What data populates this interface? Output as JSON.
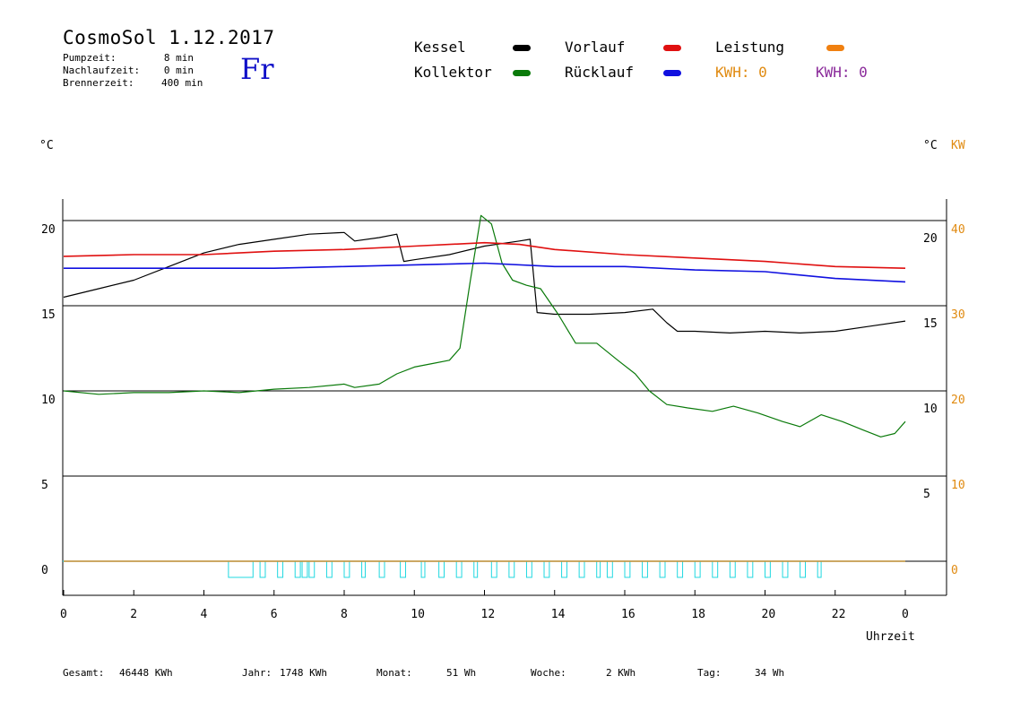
{
  "header": {
    "title": "CosmoSol 1.12.2017",
    "day": "Fr",
    "info": [
      {
        "label": "Pumpzeit:",
        "value": "8 min"
      },
      {
        "label": "Nachlaufzeit:",
        "value": "0 min"
      },
      {
        "label": "Brennerzeit:",
        "value": "400 min"
      }
    ]
  },
  "legend": {
    "kessel": {
      "label": "Kessel",
      "color": "#000000"
    },
    "kollektor": {
      "label": "Kollektor",
      "color": "#0a7a0a"
    },
    "vorlauf": {
      "label": "Vorlauf",
      "color": "#e01010"
    },
    "ruecklauf": {
      "label": "Rücklauf",
      "color": "#1010e0"
    },
    "leistung": {
      "label": "Leistung",
      "color": "#f08010"
    },
    "kwh1": {
      "label": "KWH: 0",
      "color": "#e08a10"
    },
    "kwh2": {
      "label": "KWH: 0",
      "color": "#8a2a9a"
    }
  },
  "units": {
    "left": "°C",
    "right_c": "°C",
    "right_kw": "KW"
  },
  "footer": {
    "gesamt_label": "Gesamt:",
    "gesamt_value": "46448 KWh",
    "jahr_label": "Jahr:",
    "jahr_value": "1748 KWh",
    "monat_label": "Monat:",
    "monat_value": "51 Wh",
    "woche_label": "Woche:",
    "woche_value": "2 KWh",
    "tag_label": "Tag:",
    "tag_value": "34 Wh"
  },
  "chart_data": {
    "type": "line",
    "xlabel": "Uhrzeit",
    "x_ticks": [
      "0",
      "2",
      "4",
      "6",
      "8",
      "10",
      "12",
      "14",
      "16",
      "18",
      "20",
      "22",
      "0"
    ],
    "x_range": [
      0,
      24
    ],
    "y_left_ticks": [
      "0",
      "5",
      "10",
      "15",
      "20"
    ],
    "y_left_range": [
      -1,
      22
    ],
    "y_right_c_ticks": [
      "5",
      "10",
      "15",
      "20"
    ],
    "y_right_kw_ticks": [
      "0",
      "10",
      "20",
      "30",
      "40"
    ],
    "grid": "horizontal",
    "series": [
      {
        "name": "Kessel",
        "color": "#000000",
        "points": [
          [
            0,
            15.5
          ],
          [
            1,
            16.0
          ],
          [
            2,
            16.5
          ],
          [
            3,
            17.3
          ],
          [
            4,
            18.1
          ],
          [
            5,
            18.6
          ],
          [
            6,
            18.9
          ],
          [
            7,
            19.2
          ],
          [
            8,
            19.3
          ],
          [
            8.3,
            18.8
          ],
          [
            9,
            19.0
          ],
          [
            9.5,
            19.2
          ],
          [
            9.7,
            17.6
          ],
          [
            10,
            17.7
          ],
          [
            11,
            18.0
          ],
          [
            12,
            18.5
          ],
          [
            13,
            18.8
          ],
          [
            13.3,
            18.9
          ],
          [
            13.5,
            14.6
          ],
          [
            14,
            14.5
          ],
          [
            15,
            14.5
          ],
          [
            16,
            14.6
          ],
          [
            16.8,
            14.8
          ],
          [
            17.2,
            14.0
          ],
          [
            17.5,
            13.5
          ],
          [
            18,
            13.5
          ],
          [
            19,
            13.4
          ],
          [
            20,
            13.5
          ],
          [
            21,
            13.4
          ],
          [
            22,
            13.5
          ],
          [
            23,
            13.8
          ],
          [
            24,
            14.1
          ]
        ]
      },
      {
        "name": "Kollektor",
        "color": "#0a7a0a",
        "points": [
          [
            0,
            10.0
          ],
          [
            1,
            9.8
          ],
          [
            2,
            9.9
          ],
          [
            3,
            9.9
          ],
          [
            4,
            10.0
          ],
          [
            5,
            9.9
          ],
          [
            6,
            10.1
          ],
          [
            7,
            10.2
          ],
          [
            8,
            10.4
          ],
          [
            8.3,
            10.2
          ],
          [
            9,
            10.4
          ],
          [
            9.5,
            11.0
          ],
          [
            10,
            11.4
          ],
          [
            10.5,
            11.6
          ],
          [
            11,
            11.8
          ],
          [
            11.3,
            12.5
          ],
          [
            11.6,
            16.5
          ],
          [
            11.9,
            20.3
          ],
          [
            12.2,
            19.8
          ],
          [
            12.5,
            17.5
          ],
          [
            12.8,
            16.5
          ],
          [
            13.2,
            16.2
          ],
          [
            13.6,
            16.0
          ],
          [
            14.1,
            14.5
          ],
          [
            14.6,
            12.8
          ],
          [
            15.2,
            12.8
          ],
          [
            15.8,
            11.8
          ],
          [
            16.3,
            11.0
          ],
          [
            16.7,
            10.0
          ],
          [
            17.2,
            9.2
          ],
          [
            17.8,
            9.0
          ],
          [
            18.5,
            8.8
          ],
          [
            19.1,
            9.1
          ],
          [
            19.8,
            8.7
          ],
          [
            20.5,
            8.2
          ],
          [
            21.0,
            7.9
          ],
          [
            21.6,
            8.6
          ],
          [
            22.2,
            8.2
          ],
          [
            22.8,
            7.7
          ],
          [
            23.3,
            7.3
          ],
          [
            23.7,
            7.5
          ],
          [
            24,
            8.2
          ]
        ]
      },
      {
        "name": "Vorlauf",
        "color": "#e01010",
        "points": [
          [
            0,
            17.9
          ],
          [
            2,
            18.0
          ],
          [
            4,
            18.0
          ],
          [
            6,
            18.2
          ],
          [
            8,
            18.3
          ],
          [
            10,
            18.5
          ],
          [
            12,
            18.7
          ],
          [
            13,
            18.6
          ],
          [
            14,
            18.3
          ],
          [
            16,
            18.0
          ],
          [
            18,
            17.8
          ],
          [
            20,
            17.6
          ],
          [
            22,
            17.3
          ],
          [
            24,
            17.2
          ]
        ]
      },
      {
        "name": "Rücklauf",
        "color": "#1010e0",
        "points": [
          [
            0,
            17.2
          ],
          [
            2,
            17.2
          ],
          [
            4,
            17.2
          ],
          [
            6,
            17.2
          ],
          [
            8,
            17.3
          ],
          [
            10,
            17.4
          ],
          [
            12,
            17.5
          ],
          [
            14,
            17.3
          ],
          [
            16,
            17.3
          ],
          [
            18,
            17.1
          ],
          [
            20,
            17.0
          ],
          [
            22,
            16.6
          ],
          [
            24,
            16.4
          ]
        ]
      },
      {
        "name": "Leistung",
        "color": "#f08010",
        "points": [
          [
            0,
            0.0
          ],
          [
            24,
            0.0
          ]
        ]
      }
    ],
    "pump": {
      "color": "#20d8e0",
      "on_intervals": [
        [
          4.7,
          5.4
        ],
        [
          5.6,
          5.75
        ],
        [
          6.1,
          6.25
        ],
        [
          6.6,
          6.75
        ],
        [
          6.8,
          6.95
        ],
        [
          7.0,
          7.15
        ],
        [
          7.5,
          7.65
        ],
        [
          8.0,
          8.15
        ],
        [
          8.5,
          8.6
        ],
        [
          9.0,
          9.15
        ],
        [
          9.6,
          9.75
        ],
        [
          10.2,
          10.3
        ],
        [
          10.7,
          10.85
        ],
        [
          11.2,
          11.35
        ],
        [
          11.7,
          11.8
        ],
        [
          12.2,
          12.35
        ],
        [
          12.7,
          12.85
        ],
        [
          13.2,
          13.35
        ],
        [
          13.7,
          13.85
        ],
        [
          14.2,
          14.35
        ],
        [
          14.7,
          14.85
        ],
        [
          15.2,
          15.3
        ],
        [
          15.5,
          15.65
        ],
        [
          16.0,
          16.15
        ],
        [
          16.5,
          16.65
        ],
        [
          17.0,
          17.15
        ],
        [
          17.5,
          17.65
        ],
        [
          18.0,
          18.15
        ],
        [
          18.5,
          18.65
        ],
        [
          19.0,
          19.15
        ],
        [
          19.5,
          19.65
        ],
        [
          20.0,
          20.15
        ],
        [
          20.5,
          20.65
        ],
        [
          21.0,
          21.15
        ],
        [
          21.5,
          21.6
        ]
      ]
    }
  }
}
